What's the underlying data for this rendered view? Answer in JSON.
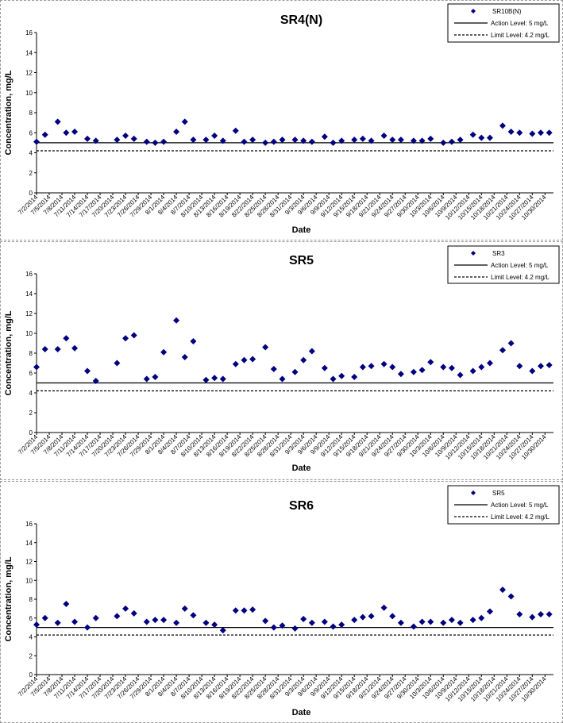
{
  "dates": [
    "7/2/2014",
    "7/5/2014",
    "7/8/2014",
    "7/11/2014",
    "7/14/2014",
    "7/17/2014",
    "7/20/2014",
    "7/23/2014",
    "7/26/2014",
    "7/29/2014",
    "8/1/2014",
    "8/4/2014",
    "8/7/2014",
    "8/10/2014",
    "8/13/2014",
    "8/16/2014",
    "8/19/2014",
    "8/22/2014",
    "8/25/2014",
    "8/28/2014",
    "8/31/2014",
    "9/3/2014",
    "9/6/2014",
    "9/9/2014",
    "9/12/2014",
    "9/15/2014",
    "9/18/2014",
    "9/21/2014",
    "9/24/2014",
    "9/27/2014",
    "9/30/2014",
    "10/3/2014",
    "10/6/2014",
    "10/9/2014",
    "10/12/2014",
    "10/15/2014",
    "10/18/2014",
    "10/21/2014",
    "10/24/2014",
    "10/27/2014",
    "10/30/2014"
  ],
  "chart_data": [
    {
      "type": "scatter",
      "title": "SR4(N)",
      "xlabel": "Date",
      "ylabel": "Concentration, mg/L",
      "ylim": [
        0,
        16
      ],
      "yticks": [
        0,
        2,
        4,
        6,
        8,
        10,
        12,
        14,
        16
      ],
      "xlim": [
        "7/2/2014",
        "11/1/2014"
      ],
      "legend_position": "top-right",
      "grid": false,
      "colors": {
        "points": "#000080",
        "action": "#000000",
        "limit": "#000000"
      },
      "series": [
        {
          "name": "SR10B(N)",
          "x": [
            "7/2/2014",
            "7/4/2014",
            "7/7/2014",
            "7/9/2014",
            "7/11/2014",
            "7/14/2014",
            "7/16/2014",
            "7/21/2014",
            "7/23/2014",
            "7/25/2014",
            "7/28/2014",
            "7/30/2014",
            "8/1/2014",
            "8/4/2014",
            "8/6/2014",
            "8/8/2014",
            "8/11/2014",
            "8/13/2014",
            "8/15/2014",
            "8/18/2014",
            "8/20/2014",
            "8/22/2014",
            "8/25/2014",
            "8/27/2014",
            "8/29/2014",
            "9/1/2014",
            "9/3/2014",
            "9/5/2014",
            "9/8/2014",
            "9/10/2014",
            "9/12/2014",
            "9/15/2014",
            "9/17/2014",
            "9/19/2014",
            "9/22/2014",
            "9/24/2014",
            "9/26/2014",
            "9/29/2014",
            "10/1/2014",
            "10/3/2014",
            "10/6/2014",
            "10/8/2014",
            "10/10/2014",
            "10/13/2014",
            "10/15/2014",
            "10/17/2014",
            "10/20/2014",
            "10/22/2014",
            "10/24/2014",
            "10/27/2014",
            "10/29/2014",
            "10/31/2014"
          ],
          "y": [
            5.1,
            5.8,
            7.1,
            6.0,
            6.1,
            5.4,
            5.2,
            5.3,
            5.7,
            5.4,
            5.1,
            5.0,
            5.1,
            6.1,
            7.1,
            5.3,
            5.3,
            5.7,
            5.2,
            6.2,
            5.1,
            5.3,
            5.0,
            5.1,
            5.3,
            5.3,
            5.2,
            5.1,
            5.6,
            5.0,
            5.2,
            5.3,
            5.4,
            5.2,
            5.7,
            5.3,
            5.3,
            5.2,
            5.2,
            5.4,
            5.0,
            5.1,
            5.3,
            5.8,
            5.5,
            5.5,
            6.7,
            6.1,
            6.0,
            5.9,
            6.0,
            6.0
          ]
        }
      ],
      "reference_lines": [
        {
          "name": "Action Level: 5 mg/L",
          "value": 5,
          "style": "solid"
        },
        {
          "name": "Limit Level: 4.2 mg/L",
          "value": 4.2,
          "style": "dashed"
        }
      ]
    },
    {
      "type": "scatter",
      "title": "SR5",
      "xlabel": "Date",
      "ylabel": "Concentration, mg/L",
      "ylim": [
        0,
        16
      ],
      "yticks": [
        0,
        2,
        4,
        6,
        8,
        10,
        12,
        14,
        16
      ],
      "xlim": [
        "7/2/2014",
        "11/1/2014"
      ],
      "legend_position": "top-right",
      "grid": false,
      "colors": {
        "points": "#000080",
        "action": "#000000",
        "limit": "#000000"
      },
      "series": [
        {
          "name": "SR3",
          "x": [
            "7/2/2014",
            "7/4/2014",
            "7/7/2014",
            "7/9/2014",
            "7/11/2014",
            "7/14/2014",
            "7/16/2014",
            "7/21/2014",
            "7/23/2014",
            "7/25/2014",
            "7/28/2014",
            "7/30/2014",
            "8/1/2014",
            "8/4/2014",
            "8/6/2014",
            "8/8/2014",
            "8/11/2014",
            "8/13/2014",
            "8/15/2014",
            "8/18/2014",
            "8/20/2014",
            "8/22/2014",
            "8/25/2014",
            "8/27/2014",
            "8/29/2014",
            "9/1/2014",
            "9/3/2014",
            "9/5/2014",
            "9/8/2014",
            "9/10/2014",
            "9/12/2014",
            "9/15/2014",
            "9/17/2014",
            "9/19/2014",
            "9/22/2014",
            "9/24/2014",
            "9/26/2014",
            "9/29/2014",
            "10/1/2014",
            "10/3/2014",
            "10/6/2014",
            "10/8/2014",
            "10/10/2014",
            "10/13/2014",
            "10/15/2014",
            "10/17/2014",
            "10/20/2014",
            "10/22/2014",
            "10/24/2014",
            "10/27/2014",
            "10/29/2014",
            "10/31/2014"
          ],
          "y": [
            6.6,
            8.4,
            8.4,
            9.5,
            8.5,
            6.2,
            5.2,
            7.0,
            9.5,
            9.8,
            5.4,
            5.6,
            8.1,
            11.3,
            7.6,
            9.2,
            5.3,
            5.5,
            5.4,
            6.9,
            7.3,
            7.4,
            8.6,
            6.4,
            5.4,
            6.1,
            7.3,
            8.2,
            6.5,
            5.4,
            5.7,
            5.6,
            6.6,
            6.7,
            6.9,
            6.6,
            5.9,
            6.1,
            6.3,
            7.1,
            6.6,
            6.5,
            5.8,
            6.2,
            6.6,
            7.0,
            8.3,
            9.0,
            6.7,
            6.2,
            6.7,
            6.8
          ]
        }
      ],
      "reference_lines": [
        {
          "name": "Action Level: 5 mg/L",
          "value": 5,
          "style": "solid"
        },
        {
          "name": "Limit Level: 4.2 mg/L",
          "value": 4.2,
          "style": "dashed"
        }
      ]
    },
    {
      "type": "scatter",
      "title": "SR6",
      "xlabel": "Date",
      "ylabel": "Concentration, mg/L",
      "ylim": [
        0,
        16
      ],
      "yticks": [
        0,
        2,
        4,
        6,
        8,
        10,
        12,
        14,
        16
      ],
      "xlim": [
        "7/2/2014",
        "11/1/2014"
      ],
      "legend_position": "top-right",
      "grid": false,
      "colors": {
        "points": "#000080",
        "action": "#000000",
        "limit": "#000000"
      },
      "series": [
        {
          "name": "SR5",
          "x": [
            "7/2/2014",
            "7/4/2014",
            "7/7/2014",
            "7/9/2014",
            "7/11/2014",
            "7/14/2014",
            "7/16/2014",
            "7/21/2014",
            "7/23/2014",
            "7/25/2014",
            "7/28/2014",
            "7/30/2014",
            "8/1/2014",
            "8/4/2014",
            "8/6/2014",
            "8/8/2014",
            "8/11/2014",
            "8/13/2014",
            "8/15/2014",
            "8/18/2014",
            "8/20/2014",
            "8/22/2014",
            "8/25/2014",
            "8/27/2014",
            "8/29/2014",
            "9/1/2014",
            "9/3/2014",
            "9/5/2014",
            "9/8/2014",
            "9/10/2014",
            "9/12/2014",
            "9/15/2014",
            "9/17/2014",
            "9/19/2014",
            "9/22/2014",
            "9/24/2014",
            "9/26/2014",
            "9/29/2014",
            "10/1/2014",
            "10/3/2014",
            "10/6/2014",
            "10/8/2014",
            "10/10/2014",
            "10/13/2014",
            "10/15/2014",
            "10/17/2014",
            "10/20/2014",
            "10/22/2014",
            "10/24/2014",
            "10/27/2014",
            "10/29/2014",
            "10/31/2014"
          ],
          "y": [
            5.3,
            6.0,
            5.5,
            7.5,
            5.6,
            5.0,
            6.0,
            6.2,
            7.0,
            6.5,
            5.6,
            5.8,
            5.8,
            5.5,
            7.0,
            6.3,
            5.5,
            5.3,
            4.7,
            6.8,
            6.8,
            6.9,
            5.7,
            5.0,
            5.2,
            4.9,
            5.9,
            5.5,
            5.6,
            5.1,
            5.3,
            5.8,
            6.1,
            6.2,
            7.1,
            6.2,
            5.5,
            5.1,
            5.6,
            5.6,
            5.5,
            5.8,
            5.5,
            5.8,
            6.0,
            6.7,
            9.0,
            8.3,
            6.4,
            6.1,
            6.4,
            6.4
          ]
        }
      ],
      "reference_lines": [
        {
          "name": "Action Level: 5 mg/L",
          "value": 5,
          "style": "solid"
        },
        {
          "name": "Limit Level: 4.2 mg/L",
          "value": 4.2,
          "style": "dashed"
        }
      ]
    }
  ]
}
